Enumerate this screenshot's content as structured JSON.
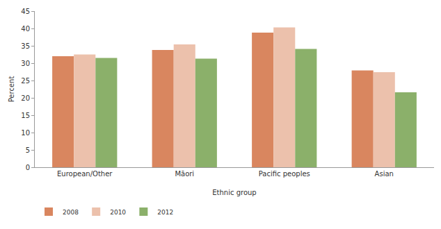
{
  "chart_data": {
    "type": "bar",
    "x_label": "Ethnic group",
    "y_label": "Percent",
    "categories": [
      "European/Other",
      "Māori",
      "Pacific peoples",
      "Asian"
    ],
    "series": [
      {
        "name": "2008",
        "color": "#d9865f",
        "values": [
          32.0,
          33.8,
          38.8,
          27.9
        ]
      },
      {
        "name": "2010",
        "color": "#ecc1ac",
        "values": [
          32.5,
          35.4,
          40.3,
          27.4
        ]
      },
      {
        "name": "2012",
        "color": "#8bb06a",
        "values": [
          31.5,
          31.3,
          34.1,
          21.6
        ]
      }
    ],
    "ylim": [
      0,
      45
    ],
    "yticks": [
      0,
      5,
      10,
      15,
      20,
      25,
      30,
      35,
      40,
      45
    ],
    "grid": false,
    "legend": "bottom-left"
  }
}
